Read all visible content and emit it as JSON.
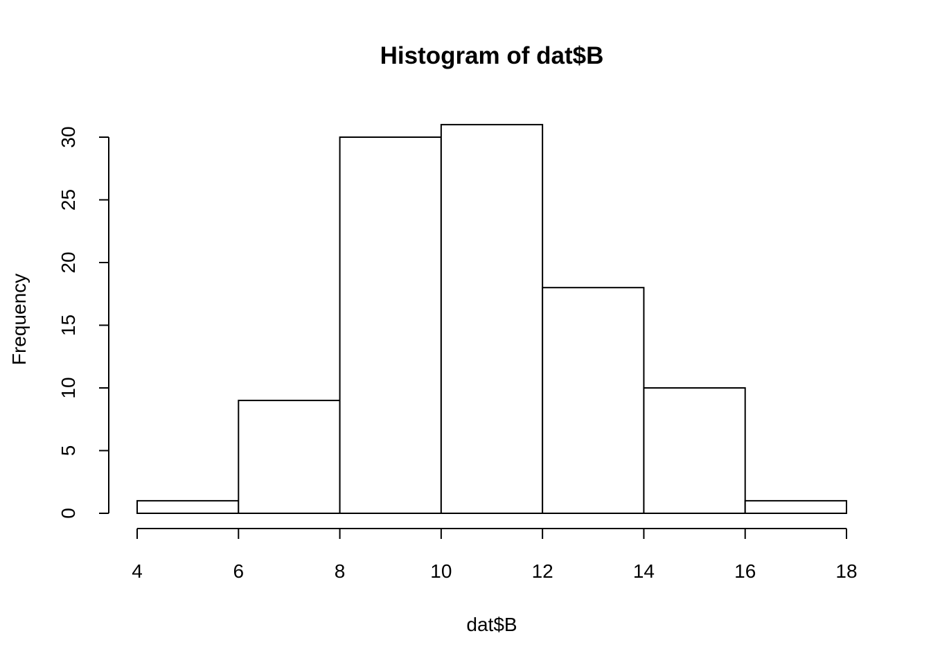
{
  "chart_data": {
    "type": "bar",
    "subtype": "histogram",
    "title": "Histogram of dat$B",
    "xlabel": "dat$B",
    "ylabel": "Frequency",
    "bins": [
      {
        "x0": 4,
        "x1": 6,
        "count": 1
      },
      {
        "x0": 6,
        "x1": 8,
        "count": 9
      },
      {
        "x0": 8,
        "x1": 10,
        "count": 30
      },
      {
        "x0": 10,
        "x1": 12,
        "count": 31
      },
      {
        "x0": 12,
        "x1": 14,
        "count": 18
      },
      {
        "x0": 14,
        "x1": 16,
        "count": 10
      },
      {
        "x0": 16,
        "x1": 18,
        "count": 1
      }
    ],
    "xticks": [
      "4",
      "6",
      "8",
      "10",
      "12",
      "14",
      "16",
      "18"
    ],
    "yticks": [
      "0",
      "5",
      "10",
      "15",
      "20",
      "25",
      "30"
    ],
    "xlim": [
      4,
      18
    ],
    "ylim": [
      0,
      30
    ],
    "grid": false,
    "bar_fill": "#ffffff",
    "bar_stroke": "#000000"
  }
}
